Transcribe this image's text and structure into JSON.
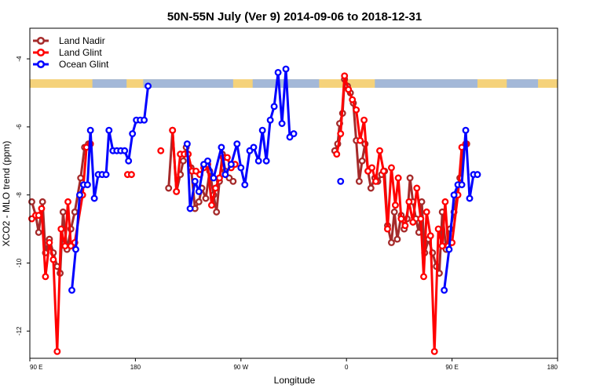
{
  "chart_data": {
    "type": "line",
    "title": "50N-55N July (Ver 9)   2014-09-06 to 2018-12-31",
    "xlabel": "Longitude",
    "ylabel": "XCO2 - MLO trend (ppm)",
    "xlim": [
      -90,
      180
    ],
    "ylim": [
      -12.8,
      -3.1
    ],
    "x_ticks": [
      {
        "value": -90,
        "label": "90 E"
      },
      {
        "value": -36,
        "label": "180"
      },
      {
        "value": 18,
        "label": "90 W"
      },
      {
        "value": 72,
        "label": "0"
      },
      {
        "value": 126,
        "label": "90 E"
      },
      {
        "value": 180,
        "label": "180"
      }
    ],
    "y_ticks": [
      -12,
      -10,
      -8,
      -6,
      -4
    ],
    "grid": false,
    "legend_position": "top-left",
    "land_sea_band": {
      "y_top": -4.6,
      "y_bottom": -4.85,
      "land_color": "#f5d27a",
      "sea_color": "#a3b8d8"
    },
    "series": [
      {
        "name": "Land Nadir",
        "color": "#a52a2a",
        "segments": [
          [
            [
              -89,
              -8.2
            ],
            [
              -87,
              -8.6
            ],
            [
              -85.5,
              -9.1
            ],
            [
              -83.5,
              -8.2
            ],
            [
              -82,
              -9.7
            ],
            [
              -80,
              -9.3
            ],
            [
              -78,
              -9.7
            ],
            [
              -76,
              -10.1
            ],
            [
              -74.5,
              -10.3
            ],
            [
              -73,
              -8.5
            ],
            [
              -71,
              -9.6
            ],
            [
              -69,
              -9
            ],
            [
              -67,
              -8.5
            ],
            [
              -64,
              -7.5
            ],
            [
              -62,
              -6.6
            ],
            [
              -60,
              -6.5
            ]
          ],
          [
            [
              -19,
              -7.8
            ],
            [
              -17,
              -6.1
            ],
            [
              -15,
              -7.9
            ],
            [
              -13,
              -7.4
            ],
            [
              -11.5,
              -7
            ],
            [
              -10,
              -6.6
            ],
            [
              -7.5,
              -7.2
            ],
            [
              -5.5,
              -8.4
            ],
            [
              -3.5,
              -8.2
            ],
            [
              -2,
              -7.8
            ],
            [
              0,
              -8.1
            ],
            [
              2,
              -7.3
            ],
            [
              4,
              -8
            ],
            [
              5.5,
              -8.5
            ],
            [
              7,
              -7.6
            ],
            [
              8.5,
              -6.8
            ],
            [
              10,
              -7.3
            ],
            [
              12,
              -7.5
            ],
            [
              14,
              -7.6
            ]
          ],
          [
            [
              66,
              -6.7
            ],
            [
              67.5,
              -6.5
            ],
            [
              68.5,
              -5.9
            ],
            [
              70,
              -5.6
            ],
            [
              71,
              -4.6
            ],
            [
              72.5,
              -4.8
            ],
            [
              74,
              -5
            ],
            [
              75.5,
              -5.3
            ],
            [
              77,
              -6.4
            ],
            [
              78.5,
              -7.6
            ],
            [
              80,
              -7
            ],
            [
              81.5,
              -6.5
            ],
            [
              83,
              -7.3
            ],
            [
              84.5,
              -7.8
            ],
            [
              86.5,
              -7.5
            ],
            [
              88,
              -7.6
            ],
            [
              90,
              -7.4
            ],
            [
              91.5,
              -7.3
            ],
            [
              93,
              -8.9
            ],
            [
              95,
              -9.4
            ],
            [
              96.5,
              -8.5
            ],
            [
              98,
              -9.3
            ],
            [
              100,
              -8.6
            ],
            [
              101.5,
              -9
            ],
            [
              103,
              -8.7
            ],
            [
              104.5,
              -7.5
            ],
            [
              106,
              -8.2
            ],
            [
              107.5,
              -8.7
            ],
            [
              109,
              -9.1
            ],
            [
              110.5,
              -8.2
            ],
            [
              112,
              -9.7
            ],
            [
              114,
              -9.3
            ],
            [
              116,
              -9.7
            ],
            [
              118,
              -10.1
            ],
            [
              119.5,
              -10.3
            ],
            [
              121,
              -8.5
            ],
            [
              123,
              -9.6
            ],
            [
              125,
              -9
            ],
            [
              127,
              -8.5
            ],
            [
              130,
              -7.5
            ],
            [
              132,
              -6.6
            ],
            [
              133.5,
              -6.5
            ]
          ]
        ]
      },
      {
        "name": "Land Glint",
        "color": "#ff0000",
        "segments": [
          [
            [
              -89,
              -8.7
            ],
            [
              -87,
              -8.6
            ],
            [
              -85.5,
              -8.6
            ],
            [
              -84,
              -8.4
            ],
            [
              -82,
              -10.4
            ],
            [
              -80,
              -9.4
            ],
            [
              -78,
              -9.9
            ],
            [
              -76,
              -12.6
            ],
            [
              -74,
              -9
            ],
            [
              -72,
              -9.5
            ],
            [
              -70.5,
              -8.2
            ],
            [
              -69,
              -9.5
            ],
            [
              -67,
              -9.4
            ],
            [
              -63,
              -8
            ],
            [
              -61,
              -6.6
            ],
            [
              -59,
              -6.5
            ]
          ],
          [
            [
              -40,
              -7.4
            ],
            [
              -38,
              -7.4
            ]
          ],
          [
            [
              -23,
              -6.7
            ]
          ],
          [
            [
              -17,
              -6.1
            ],
            [
              -15,
              -7.9
            ],
            [
              -13,
              -6.8
            ],
            [
              -11,
              -6.8
            ],
            [
              -9,
              -6.8
            ],
            [
              -7,
              -7.3
            ],
            [
              -5,
              -7.3
            ],
            [
              -3,
              -7.4
            ],
            [
              -1,
              -7.2
            ],
            [
              1,
              -7.1
            ],
            [
              3,
              -8.3
            ],
            [
              5,
              -7.8
            ],
            [
              7,
              -7.5
            ],
            [
              9,
              -6.9
            ],
            [
              11,
              -6.9
            ],
            [
              13,
              -7.2
            ],
            [
              15,
              -7.1
            ]
          ],
          [
            [
              67,
              -6.8
            ],
            [
              69,
              -6.2
            ],
            [
              71,
              -4.5
            ],
            [
              73,
              -4.9
            ],
            [
              75,
              -5.2
            ],
            [
              77,
              -5.5
            ],
            [
              79,
              -6.4
            ],
            [
              81,
              -5.8
            ],
            [
              83,
              -7.3
            ],
            [
              85,
              -7.2
            ],
            [
              87,
              -7.6
            ],
            [
              89,
              -6.7
            ],
            [
              91,
              -7.3
            ],
            [
              93,
              -9
            ],
            [
              95,
              -7.2
            ],
            [
              97,
              -8.3
            ],
            [
              98.5,
              -7.5
            ],
            [
              100,
              -8.7
            ],
            [
              102,
              -8.9
            ],
            [
              104,
              -8.2
            ],
            [
              106,
              -8.8
            ],
            [
              108,
              -7.8
            ],
            [
              110,
              -8.7
            ],
            [
              111.5,
              -10.4
            ],
            [
              113,
              -8.5
            ],
            [
              115,
              -9.2
            ],
            [
              117,
              -12.6
            ],
            [
              119,
              -9
            ],
            [
              121,
              -9.5
            ],
            [
              122.5,
              -8.2
            ],
            [
              124,
              -9.5
            ],
            [
              126,
              -9.4
            ],
            [
              129,
              -8
            ],
            [
              131,
              -6.6
            ],
            [
              133,
              -6.5
            ]
          ]
        ]
      },
      {
        "name": "Ocean Glint",
        "color": "#0000ff",
        "segments": [
          [
            [
              -68.5,
              -10.8
            ],
            [
              -66.5,
              -9.6
            ],
            [
              -64.5,
              -8
            ],
            [
              -62.5,
              -7.7
            ],
            [
              -60.5,
              -7.7
            ],
            [
              -59,
              -6.1
            ],
            [
              -57,
              -8.1
            ],
            [
              -55,
              -7.4
            ],
            [
              -53,
              -7.4
            ],
            [
              -51,
              -7.4
            ],
            [
              -49.5,
              -6.1
            ],
            [
              -47.5,
              -6.7
            ],
            [
              -45.5,
              -6.7
            ],
            [
              -43.5,
              -6.7
            ],
            [
              -41.5,
              -6.7
            ],
            [
              -39.5,
              -7
            ],
            [
              -37.5,
              -6.2
            ],
            [
              -35.5,
              -5.8
            ],
            [
              -33.5,
              -5.8
            ],
            [
              -31.5,
              -5.8
            ],
            [
              -29.5,
              -4.8
            ]
          ],
          [
            [
              -9.5,
              -6.5
            ],
            [
              -8,
              -8.4
            ],
            [
              -5.5,
              -7.6
            ],
            [
              -3.5,
              -7.9
            ],
            [
              -1,
              -7.1
            ],
            [
              1,
              -7
            ],
            [
              4,
              -7.5
            ],
            [
              8,
              -6.6
            ],
            [
              10,
              -7.4
            ],
            [
              13,
              -7.1
            ],
            [
              16,
              -6.5
            ],
            [
              18,
              -7.2
            ],
            [
              20,
              -7.7
            ],
            [
              22.5,
              -6.7
            ],
            [
              24.5,
              -6.6
            ],
            [
              27,
              -7
            ],
            [
              29,
              -6.1
            ],
            [
              31,
              -7
            ],
            [
              33,
              -5.8
            ],
            [
              35,
              -5.4
            ],
            [
              37,
              -4.4
            ],
            [
              39,
              -5.9
            ],
            [
              41,
              -4.3
            ],
            [
              43,
              -6.3
            ],
            [
              45,
              -6.2
            ]
          ],
          [
            [
              69,
              -7.6
            ]
          ],
          [
            [
              122,
              -10.8
            ],
            [
              124.5,
              -9.6
            ],
            [
              127,
              -8
            ],
            [
              129,
              -7.7
            ],
            [
              131,
              -7.7
            ],
            [
              133,
              -6.1
            ],
            [
              135,
              -8.1
            ],
            [
              137,
              -7.4
            ],
            [
              139,
              -7.4
            ]
          ]
        ]
      }
    ]
  }
}
